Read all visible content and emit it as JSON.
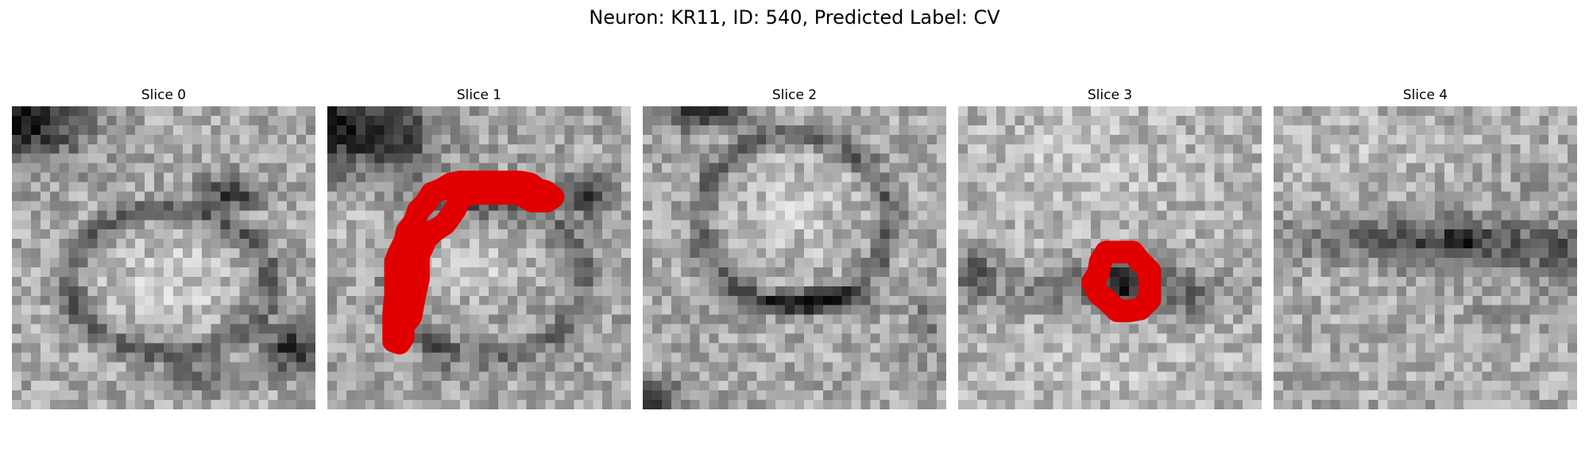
{
  "figure": {
    "title": "Neuron: KR11, ID: 540, Predicted Label: CV"
  },
  "panels": [
    {
      "title": "Slice 0",
      "has_contour": false
    },
    {
      "title": "Slice 1",
      "has_contour": true,
      "contour_color": "#e00000"
    },
    {
      "title": "Slice 2",
      "has_contour": false
    },
    {
      "title": "Slice 3",
      "has_contour": true,
      "contour_color": "#e00000"
    },
    {
      "title": "Slice 4",
      "has_contour": false
    }
  ],
  "colors": {
    "background": "#ffffff",
    "contour": "#e00000"
  },
  "image_style": "grayscale pixelated microscopy patch"
}
